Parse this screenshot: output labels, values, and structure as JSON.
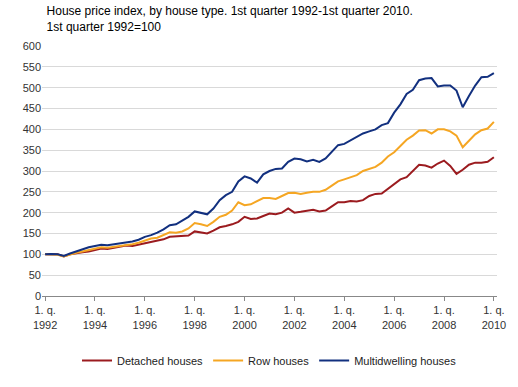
{
  "chart_data": {
    "type": "line",
    "title": "House price index, by house type. 1st quarter 1992-1st quarter 2010.\n1st quarter 1992=100",
    "categories": [
      "1. q.\n1992",
      null,
      null,
      null,
      null,
      null,
      null,
      null,
      "1. q.\n1994",
      null,
      null,
      null,
      null,
      null,
      null,
      null,
      "1. q.\n1996",
      null,
      null,
      null,
      null,
      null,
      null,
      null,
      "1. q.\n1998",
      null,
      null,
      null,
      null,
      null,
      null,
      null,
      "1. q.\n2000",
      null,
      null,
      null,
      null,
      null,
      null,
      null,
      "1. q.\n2002",
      null,
      null,
      null,
      null,
      null,
      null,
      null,
      "1. q.\n2004",
      null,
      null,
      null,
      null,
      null,
      null,
      null,
      "1. q.\n2006",
      null,
      null,
      null,
      null,
      null,
      null,
      null,
      "1. q.\n2008",
      null,
      null,
      null,
      null,
      null,
      null,
      null,
      "1. q.\n2010"
    ],
    "series": [
      {
        "name": "Detached houses",
        "color": "#9b1b1f",
        "values": [
          100,
          101,
          100,
          95,
          100,
          103,
          105,
          107,
          110,
          114,
          113,
          116,
          118,
          121,
          120,
          123,
          126,
          130,
          132,
          136,
          142,
          143,
          143,
          145,
          155,
          153,
          150,
          157,
          165,
          168,
          172,
          178,
          190,
          185,
          186,
          192,
          198,
          196,
          200,
          210,
          200,
          202,
          205,
          207,
          203,
          205,
          215,
          225,
          225,
          228,
          227,
          230,
          240,
          245,
          246,
          258,
          270,
          280,
          285,
          300,
          315,
          313,
          308,
          318,
          325,
          312,
          293,
          303,
          315,
          320,
          320,
          322,
          333
        ]
      },
      {
        "name": "Row houses",
        "color": "#f5a623",
        "values": [
          100,
          100,
          99,
          95,
          100,
          104,
          107,
          110,
          113,
          117,
          116,
          118,
          120,
          123,
          124,
          128,
          133,
          138,
          140,
          147,
          153,
          152,
          155,
          162,
          175,
          172,
          168,
          178,
          190,
          195,
          205,
          225,
          218,
          220,
          228,
          235,
          235,
          233,
          240,
          247,
          248,
          245,
          248,
          250,
          250,
          255,
          265,
          275,
          280,
          285,
          290,
          300,
          305,
          310,
          320,
          335,
          345,
          360,
          375,
          385,
          397,
          398,
          390,
          400,
          400,
          395,
          385,
          357,
          372,
          388,
          398,
          402,
          418
        ]
      },
      {
        "name": "Multidwelling houses",
        "color": "#12307f",
        "values": [
          100,
          101,
          100,
          96,
          102,
          107,
          112,
          117,
          120,
          123,
          122,
          124,
          127,
          129,
          131,
          135,
          142,
          146,
          152,
          160,
          170,
          172,
          180,
          190,
          203,
          200,
          196,
          210,
          230,
          242,
          250,
          275,
          287,
          282,
          272,
          292,
          300,
          305,
          306,
          322,
          330,
          328,
          323,
          327,
          322,
          330,
          345,
          362,
          365,
          373,
          380,
          390,
          395,
          400,
          410,
          415,
          440,
          460,
          485,
          495,
          518,
          522,
          523,
          503,
          505,
          505,
          493,
          453,
          480,
          505,
          525,
          526,
          535
        ]
      }
    ],
    "ylim": [
      0,
      600
    ],
    "yticks": [
      0,
      50,
      100,
      150,
      200,
      250,
      300,
      350,
      400,
      450,
      500,
      550,
      600
    ],
    "grid": true,
    "legend": "bottom"
  }
}
